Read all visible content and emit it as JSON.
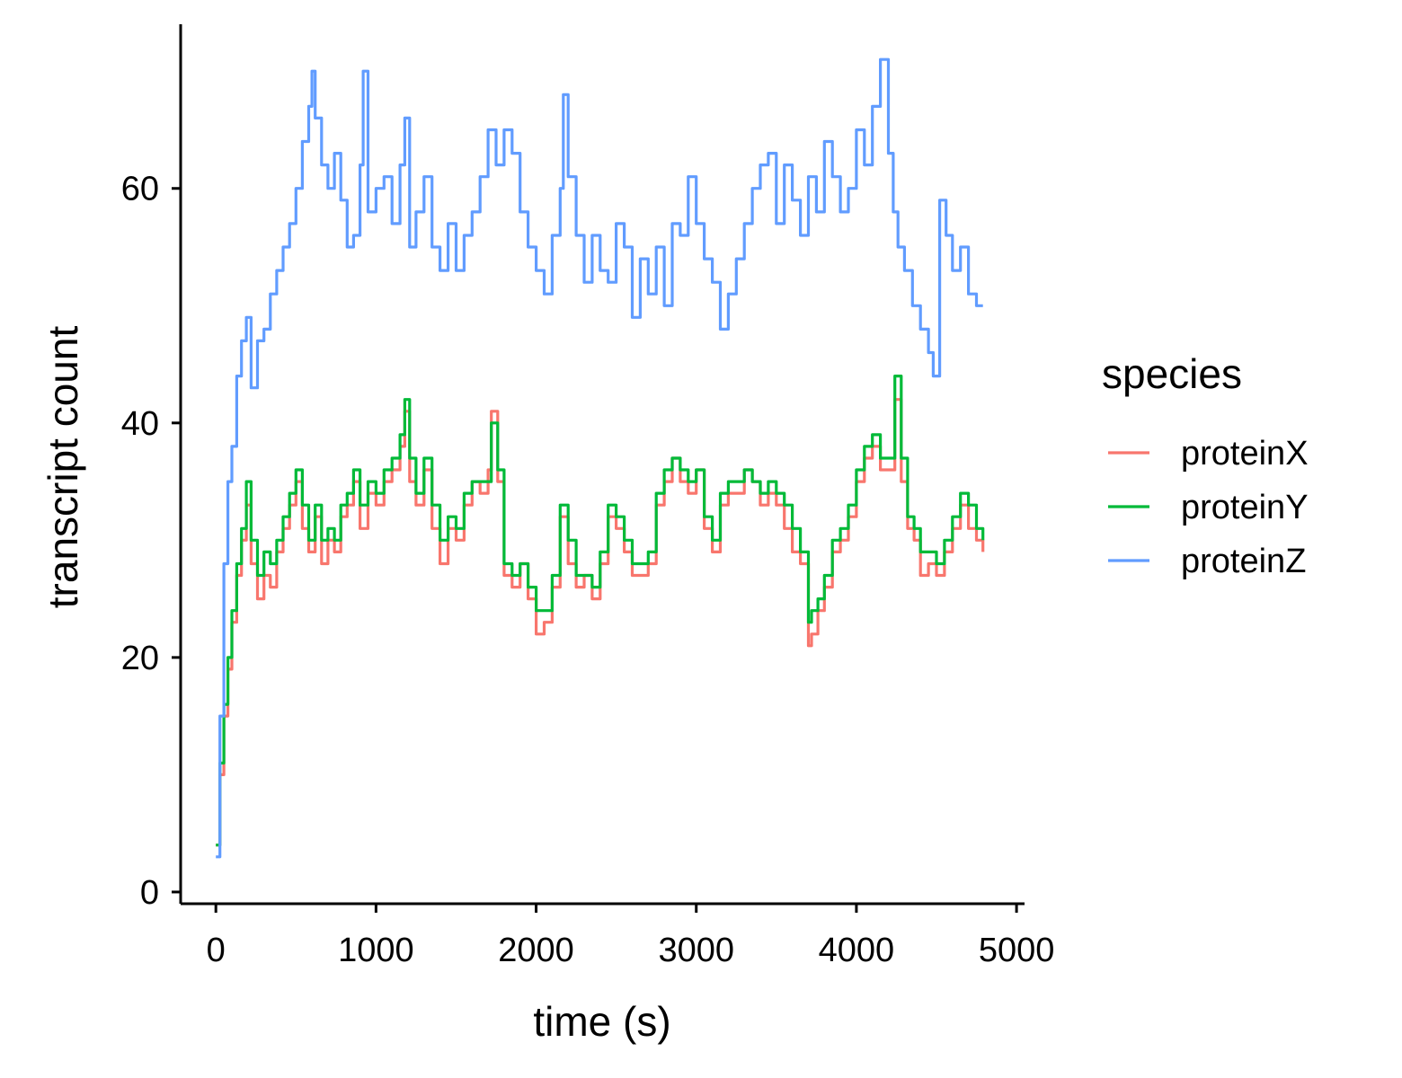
{
  "chart_data": {
    "type": "line",
    "xlabel": "time (s)",
    "ylabel": "transcript count",
    "xlim": [
      -220,
      5050
    ],
    "ylim": [
      -1,
      74
    ],
    "x_ticks": [
      0,
      1000,
      2000,
      3000,
      4000,
      5000
    ],
    "y_ticks": [
      0,
      20,
      40,
      60
    ],
    "x_tick_labels": [
      "0",
      "1000",
      "2000",
      "3000",
      "4000",
      "5000"
    ],
    "y_tick_labels": [
      "0",
      "20",
      "40",
      "60"
    ],
    "grid": false,
    "legend_position": "right",
    "legend": {
      "title": "species",
      "entries": [
        "proteinX",
        "proteinY",
        "proteinZ"
      ]
    },
    "series": [
      {
        "name": "proteinX",
        "color": "#F8766D",
        "x": [
          0,
          25,
          50,
          75,
          100,
          130,
          160,
          190,
          220,
          260,
          300,
          340,
          380,
          420,
          460,
          500,
          540,
          580,
          620,
          660,
          700,
          740,
          780,
          820,
          860,
          900,
          950,
          1000,
          1050,
          1100,
          1150,
          1180,
          1210,
          1250,
          1300,
          1350,
          1400,
          1450,
          1500,
          1550,
          1600,
          1650,
          1700,
          1720,
          1760,
          1800,
          1850,
          1900,
          1950,
          2000,
          2050,
          2100,
          2150,
          2200,
          2250,
          2300,
          2350,
          2400,
          2450,
          2500,
          2550,
          2600,
          2650,
          2700,
          2750,
          2800,
          2850,
          2900,
          2950,
          3000,
          3050,
          3100,
          3150,
          3200,
          3250,
          3300,
          3350,
          3400,
          3450,
          3500,
          3550,
          3600,
          3650,
          3700,
          3720,
          3760,
          3800,
          3850,
          3900,
          3950,
          4000,
          4050,
          4100,
          4150,
          4200,
          4240,
          4280,
          4320,
          4360,
          4400,
          4450,
          4500,
          4550,
          4600,
          4650,
          4700,
          4750,
          4790
        ],
        "values": [
          4,
          10,
          15,
          19,
          23,
          27,
          30,
          33,
          28,
          25,
          27,
          26,
          29,
          31,
          33,
          35,
          31,
          29,
          32,
          28,
          30,
          29,
          32,
          33,
          35,
          31,
          34,
          33,
          35,
          36,
          38,
          41,
          35,
          33,
          36,
          31,
          28,
          31,
          30,
          33,
          35,
          34,
          36,
          41,
          35,
          27,
          26,
          28,
          25,
          22,
          23,
          26,
          32,
          28,
          26,
          27,
          25,
          28,
          32,
          31,
          29,
          27,
          27,
          28,
          33,
          35,
          37,
          35,
          34,
          36,
          31,
          29,
          33,
          34,
          34,
          36,
          35,
          33,
          34,
          33,
          31,
          29,
          28,
          21,
          22,
          24,
          26,
          29,
          30,
          32,
          35,
          37,
          38,
          36,
          36,
          42,
          35,
          31,
          30,
          27,
          28,
          27,
          29,
          31,
          33,
          31,
          30,
          29
        ],
        "labels": {
          "label": "proteinX"
        }
      },
      {
        "name": "proteinY",
        "color": "#00BA38",
        "x": [
          0,
          25,
          50,
          75,
          100,
          130,
          160,
          190,
          220,
          260,
          300,
          340,
          380,
          420,
          460,
          500,
          540,
          580,
          620,
          660,
          700,
          740,
          780,
          820,
          860,
          900,
          950,
          1000,
          1050,
          1100,
          1150,
          1180,
          1210,
          1250,
          1300,
          1350,
          1400,
          1450,
          1500,
          1550,
          1600,
          1650,
          1700,
          1720,
          1760,
          1800,
          1850,
          1900,
          1950,
          2000,
          2050,
          2100,
          2150,
          2200,
          2250,
          2300,
          2350,
          2400,
          2450,
          2500,
          2550,
          2600,
          2650,
          2700,
          2750,
          2800,
          2850,
          2900,
          2950,
          3000,
          3050,
          3100,
          3150,
          3200,
          3250,
          3300,
          3350,
          3400,
          3450,
          3500,
          3550,
          3600,
          3650,
          3700,
          3720,
          3760,
          3800,
          3850,
          3900,
          3950,
          4000,
          4050,
          4100,
          4150,
          4200,
          4240,
          4280,
          4320,
          4360,
          4400,
          4450,
          4500,
          4550,
          4600,
          4650,
          4700,
          4750,
          4790
        ],
        "values": [
          4,
          11,
          16,
          20,
          24,
          28,
          31,
          35,
          30,
          27,
          29,
          28,
          30,
          32,
          34,
          36,
          33,
          30,
          33,
          30,
          31,
          30,
          33,
          34,
          36,
          33,
          35,
          34,
          36,
          37,
          39,
          42,
          37,
          34,
          37,
          33,
          30,
          32,
          31,
          34,
          35,
          35,
          35,
          40,
          36,
          28,
          27,
          28,
          26,
          24,
          24,
          27,
          33,
          30,
          27,
          27,
          26,
          29,
          33,
          32,
          30,
          28,
          28,
          29,
          34,
          36,
          37,
          36,
          35,
          36,
          32,
          30,
          34,
          35,
          35,
          36,
          35,
          34,
          35,
          34,
          33,
          31,
          29,
          23,
          24,
          25,
          27,
          30,
          31,
          33,
          36,
          38,
          39,
          37,
          37,
          44,
          37,
          32,
          31,
          29,
          29,
          28,
          30,
          32,
          34,
          33,
          31,
          30
        ],
        "labels": {
          "label": "proteinY"
        }
      },
      {
        "name": "proteinZ",
        "color": "#619CFF",
        "x": [
          0,
          25,
          50,
          75,
          100,
          130,
          160,
          190,
          220,
          260,
          300,
          340,
          380,
          420,
          460,
          500,
          540,
          580,
          600,
          620,
          660,
          700,
          740,
          780,
          820,
          860,
          900,
          920,
          950,
          1000,
          1050,
          1100,
          1150,
          1180,
          1210,
          1250,
          1300,
          1350,
          1400,
          1450,
          1500,
          1550,
          1600,
          1650,
          1700,
          1750,
          1800,
          1850,
          1900,
          1950,
          2000,
          2050,
          2100,
          2150,
          2170,
          2200,
          2250,
          2300,
          2350,
          2400,
          2450,
          2500,
          2550,
          2600,
          2650,
          2700,
          2750,
          2800,
          2850,
          2900,
          2950,
          3000,
          3050,
          3100,
          3150,
          3200,
          3250,
          3300,
          3350,
          3400,
          3450,
          3500,
          3550,
          3600,
          3650,
          3700,
          3750,
          3800,
          3850,
          3900,
          3950,
          4000,
          4050,
          4100,
          4150,
          4200,
          4230,
          4260,
          4300,
          4350,
          4400,
          4450,
          4480,
          4520,
          4560,
          4600,
          4650,
          4700,
          4750,
          4790
        ],
        "values": [
          3,
          15,
          28,
          35,
          38,
          44,
          47,
          49,
          43,
          47,
          48,
          51,
          53,
          55,
          57,
          60,
          64,
          67,
          70,
          66,
          62,
          60,
          63,
          59,
          55,
          56,
          62,
          70,
          58,
          60,
          61,
          57,
          62,
          66,
          55,
          58,
          61,
          55,
          53,
          57,
          53,
          56,
          58,
          61,
          65,
          62,
          65,
          63,
          58,
          55,
          53,
          51,
          56,
          60,
          68,
          61,
          56,
          52,
          56,
          53,
          52,
          57,
          55,
          49,
          54,
          51,
          55,
          50,
          57,
          56,
          61,
          57,
          54,
          52,
          48,
          51,
          54,
          57,
          60,
          62,
          63,
          57,
          62,
          59,
          56,
          61,
          58,
          64,
          61,
          58,
          60,
          65,
          62,
          67,
          71,
          63,
          58,
          55,
          53,
          50,
          48,
          46,
          44,
          59,
          56,
          53,
          55,
          51,
          50,
          50
        ],
        "labels": {
          "label": "proteinZ"
        }
      }
    ]
  }
}
